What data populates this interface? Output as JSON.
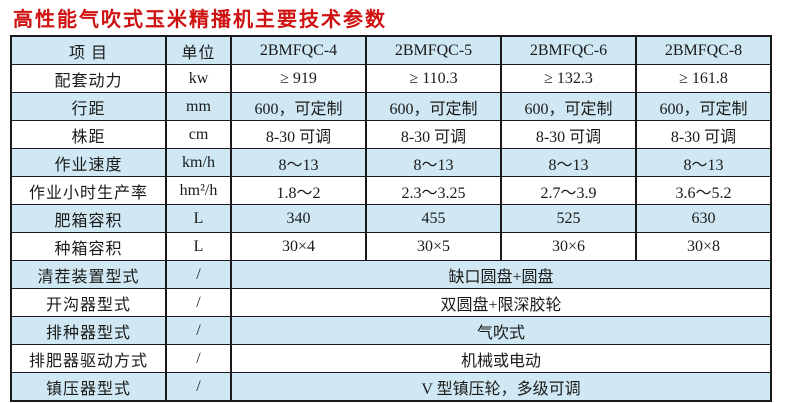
{
  "title": "高性能气吹式玉米精播机主要技术参数",
  "colors": {
    "title_red": "#cf1212",
    "row_fill_blue": "#cfe8f3",
    "border": "#1a1a1a"
  },
  "table": {
    "headers": [
      "项 目",
      "单位",
      "2BMFQC-4",
      "2BMFQC-5",
      "2BMFQC-6",
      "2BMFQC-8"
    ],
    "rows": [
      {
        "item": "配套动力",
        "unit": "kw",
        "values": [
          "≥ 919",
          "≥ 110.3",
          "≥ 132.3",
          "≥ 161.8"
        ]
      },
      {
        "item": "行距",
        "unit": "mm",
        "values": [
          "600，可定制",
          "600，可定制",
          "600，可定制",
          "600，可定制"
        ]
      },
      {
        "item": "株距",
        "unit": "cm",
        "values": [
          "8-30 可调",
          "8-30 可调",
          "8-30 可调",
          "8-30 可调"
        ]
      },
      {
        "item": "作业速度",
        "unit": "km/h",
        "values": [
          "8～13",
          "8～13",
          "8～13",
          "8～13"
        ]
      },
      {
        "item": "作业小时生产率",
        "unit": "hm²/h",
        "values": [
          "1.8～2",
          "2.3～3.25",
          "2.7～3.9",
          "3.6～5.2"
        ]
      },
      {
        "item": "肥箱容积",
        "unit": "L",
        "values": [
          "340",
          "455",
          "525",
          "630"
        ]
      },
      {
        "item": "种箱容积",
        "unit": "L",
        "values": [
          "30×4",
          "30×5",
          "30×6",
          "30×8"
        ]
      },
      {
        "item": "清茬装置型式",
        "unit": "/",
        "span": "缺口圆盘+圆盘"
      },
      {
        "item": "开沟器型式",
        "unit": "/",
        "span": "双圆盘+限深胶轮"
      },
      {
        "item": "排种器型式",
        "unit": "/",
        "span": "气吹式"
      },
      {
        "item": "排肥器驱动方式",
        "unit": "/",
        "span": "机械或电动"
      },
      {
        "item": "镇压器型式",
        "unit": "/",
        "span": "V 型镇压轮，多级可调"
      }
    ]
  }
}
